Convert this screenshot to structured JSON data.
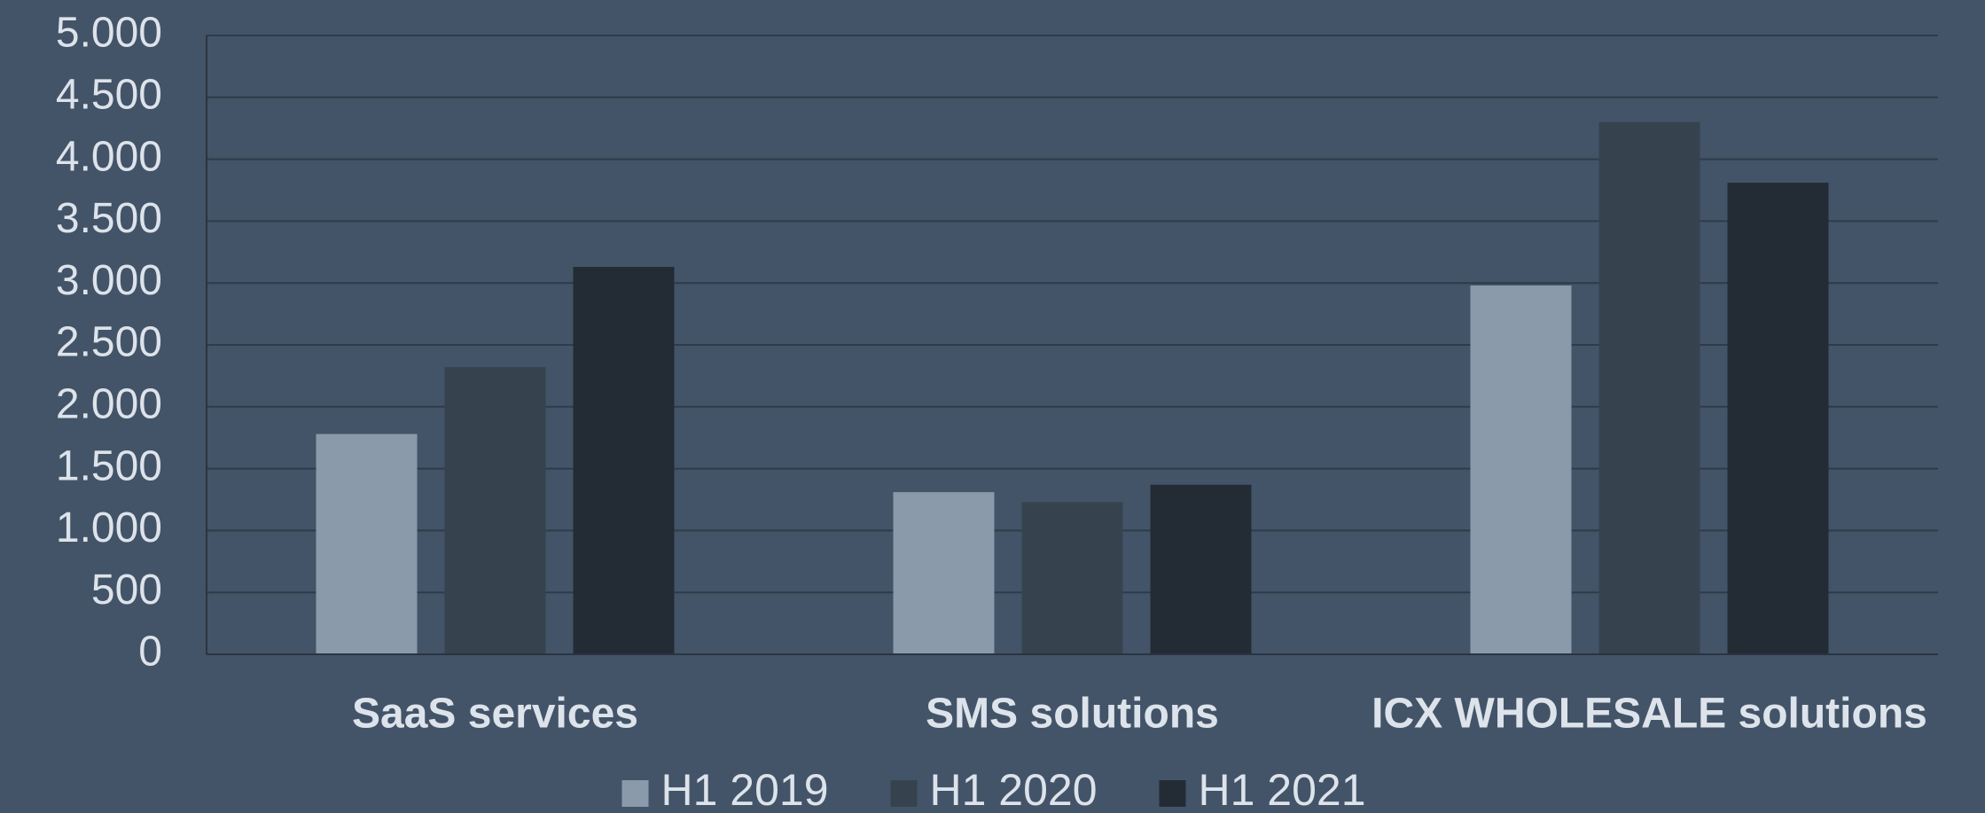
{
  "chart_data": {
    "type": "bar",
    "categories": [
      "SaaS services",
      "SMS solutions",
      "ICX WHOLESALE solutions"
    ],
    "series": [
      {
        "name": "H1 2019",
        "color": "#8a9aab",
        "values": [
          1780,
          1310,
          2980
        ]
      },
      {
        "name": "H1 2020",
        "color": "#36434f",
        "values": [
          2320,
          1230,
          4300
        ]
      },
      {
        "name": "H1 2021",
        "color": "#232b34",
        "values": [
          3130,
          1370,
          3810
        ]
      }
    ],
    "ylim": [
      0,
      5000
    ],
    "yticks": [
      0,
      500,
      {
        "value": 1000,
        "label": "1.000"
      },
      {
        "value": 1500,
        "label": "1.500"
      },
      {
        "value": 2000,
        "label": "2.000"
      },
      {
        "value": 2500,
        "label": "2.500"
      },
      {
        "value": 3000,
        "label": "3.000"
      },
      {
        "value": 3500,
        "label": "3.500"
      },
      {
        "value": 4000,
        "label": "4.000"
      },
      {
        "value": 4500,
        "label": "4.500"
      },
      {
        "value": 5000,
        "label": "5.000"
      }
    ],
    "grid": true,
    "legend": "bottom"
  }
}
